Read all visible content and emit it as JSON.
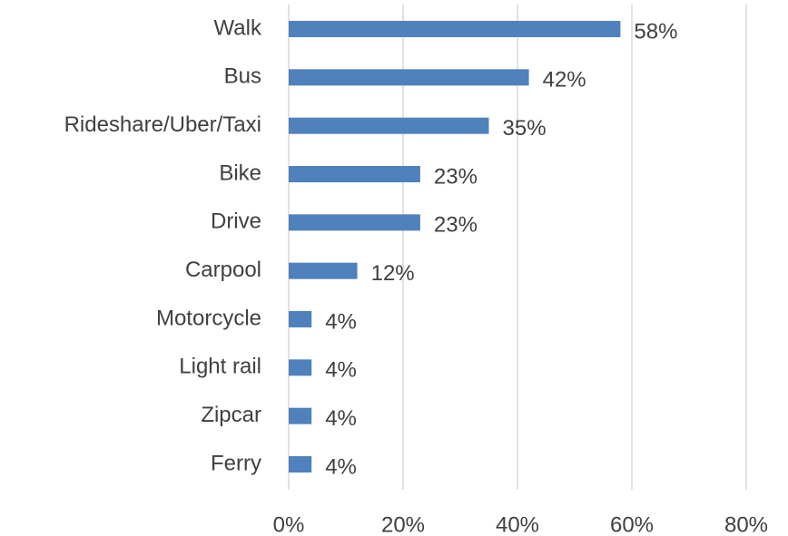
{
  "chart_data": {
    "type": "bar",
    "orientation": "horizontal",
    "categories": [
      "Walk",
      "Bus",
      "Rideshare/Uber/Taxi",
      "Bike",
      "Drive",
      "Carpool",
      "Motorcycle",
      "Light rail",
      "Zipcar",
      "Ferry"
    ],
    "values": [
      58,
      42,
      35,
      23,
      23,
      12,
      4,
      4,
      4,
      4
    ],
    "value_labels": [
      "58%",
      "42%",
      "35%",
      "23%",
      "23%",
      "12%",
      "4%",
      "4%",
      "4%",
      "4%"
    ],
    "color": "#4f81bd",
    "xlim": [
      0,
      80
    ],
    "xticks": [
      {
        "value": 0,
        "label": "0%"
      },
      {
        "value": 20,
        "label": "20%"
      },
      {
        "value": 40,
        "label": "40%"
      },
      {
        "value": 60,
        "label": "60%"
      },
      {
        "value": 80,
        "label": "80%"
      }
    ],
    "grid": true
  }
}
